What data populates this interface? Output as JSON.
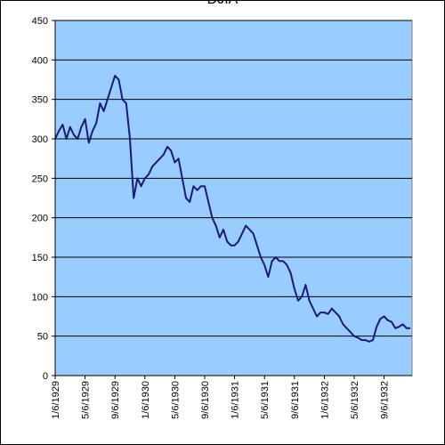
{
  "chart_data": {
    "type": "line",
    "title": "DJIA",
    "categories": [
      "1/6/1929",
      null,
      null,
      null,
      null,
      null,
      null,
      null,
      "5/6/1929",
      null,
      null,
      null,
      null,
      null,
      null,
      null,
      "9/6/1929",
      null,
      null,
      null,
      null,
      null,
      null,
      null,
      "1/6/1930",
      null,
      null,
      null,
      null,
      null,
      null,
      null,
      "5/6/1930",
      null,
      null,
      null,
      null,
      null,
      null,
      null,
      "9/6/1930",
      null,
      null,
      null,
      null,
      null,
      null,
      null,
      "1/6/1931",
      null,
      null,
      null,
      null,
      null,
      null,
      null,
      "5/6/1931",
      null,
      null,
      null,
      null,
      null,
      null,
      null,
      "9/6/1931",
      null,
      null,
      null,
      null,
      null,
      null,
      null,
      "1/6/1932",
      null,
      null,
      null,
      null,
      null,
      null,
      null,
      "5/6/1932",
      null,
      null,
      null,
      null,
      null,
      null,
      null,
      "9/6/1932",
      null,
      null,
      null,
      null,
      null,
      null,
      null
    ],
    "series": [
      {
        "name": "DJIA",
        "color": "#1a1a7a",
        "values": [
          300,
          310,
          318,
          300,
          315,
          305,
          300,
          315,
          325,
          295,
          310,
          320,
          345,
          335,
          350,
          365,
          380,
          375,
          350,
          345,
          300,
          225,
          250,
          240,
          250,
          255,
          265,
          270,
          275,
          280,
          290,
          285,
          270,
          275,
          250,
          225,
          220,
          240,
          235,
          240,
          240,
          220,
          200,
          190,
          175,
          185,
          170,
          165,
          165,
          170,
          180,
          190,
          185,
          180,
          165,
          150,
          140,
          125,
          145,
          150,
          145,
          145,
          140,
          130,
          110,
          95,
          100,
          115,
          95,
          85,
          75,
          80,
          80,
          78,
          85,
          80,
          75,
          65,
          60,
          55,
          50,
          48,
          45,
          45,
          43,
          45,
          62,
          72,
          75,
          70,
          68,
          60,
          62,
          65,
          60,
          60
        ]
      }
    ],
    "ylim": [
      0,
      450
    ],
    "yticks": [
      0,
      50,
      100,
      150,
      200,
      250,
      300,
      350,
      400,
      450
    ],
    "grid": true
  }
}
